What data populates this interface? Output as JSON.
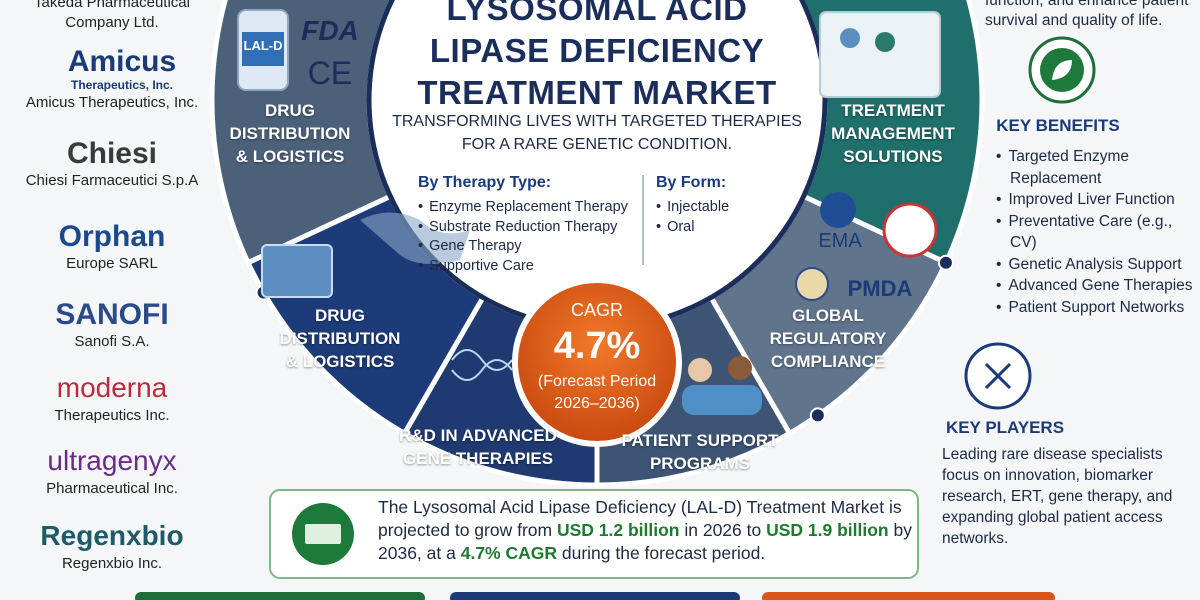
{
  "header": {
    "title": [
      "LYSOSOMAL ACID",
      "LIPASE DEFICIENCY",
      "TREATMENT MARKET"
    ],
    "subtitle": [
      "TRANSFORMING LIVES WITH TARGETED THERAPIES",
      "FOR A RARE GENETIC CONDITION."
    ]
  },
  "companies": [
    {
      "logo": null,
      "name": [
        "Takeda Pharmaceutical",
        "Company Ltd."
      ]
    },
    {
      "logo": [
        "Amicus",
        "Therapeutics, Inc."
      ],
      "name": [
        "Amicus Therapeutics, Inc."
      ]
    },
    {
      "logo": [
        "Chiesi"
      ],
      "name": [
        "Chiesi Farmaceutici S.p.A"
      ]
    },
    {
      "logo": [
        "Orphan"
      ],
      "name": [
        "Europe SARL"
      ]
    },
    {
      "logo": [
        "SANOFI"
      ],
      "name": [
        "Sanofi S.A."
      ]
    },
    {
      "logo": [
        "moderna"
      ],
      "name": [
        "Therapeutics Inc."
      ]
    },
    {
      "logo": [
        "ultragenyx"
      ],
      "name": [
        "Pharmaceutical Inc."
      ]
    },
    {
      "logo": [
        "Regenxbio"
      ],
      "name": [
        "Regenxbio Inc."
      ]
    }
  ],
  "segments": [
    [
      "DRUG",
      "DISTRIBUTION",
      "& LOGISTICS"
    ],
    [
      "TREATMENT",
      "MANAGEMENT",
      "SOLUTIONS"
    ],
    [
      "DRUG",
      "DISTRIBUTION",
      "& LOGISTICS"
    ],
    [
      "GLOBAL",
      "REGULATORY",
      "COMPLIANCE"
    ],
    [
      "R&D IN ADVANCED",
      "GENE THERAPIES"
    ],
    [
      "PATIENT SUPPORT",
      "PROGRAMS"
    ]
  ],
  "badges": {
    "vial": "LAL-D",
    "fda": "FDA",
    "ce": "CE",
    "ema": "EMA",
    "pmda": "PMDA"
  },
  "therapy_type": {
    "title": "By Therapy Type:",
    "items": [
      "Enzyme Replacement Therapy",
      "Substrate Reduction Therapy",
      "Gene Therapy",
      "Supportive Care"
    ]
  },
  "form": {
    "title": "By Form:",
    "items": [
      "Injectable",
      "Oral"
    ]
  },
  "cagr": {
    "label": "CAGR",
    "value": "4.7%",
    "period": [
      "(Forecast Period",
      "2026–2036)"
    ]
  },
  "benefits": {
    "intro": [
      "function, and enhance patient",
      "survival and quality of life."
    ],
    "title": "KEY BENEFITS",
    "items": [
      "Targeted Enzyme Replacement",
      "Improved Liver Function",
      "Preventative Care (e.g., CV)",
      "Genetic Analysis Support",
      "Advanced Gene Therapies",
      "Patient Support Networks"
    ]
  },
  "players": {
    "title": "KEY PLAYERS",
    "text": "Leading rare disease specialists focus on innovation, biomarker research, ERT, gene therapy, and expanding global patient access networks."
  },
  "summary": [
    {
      "text": "The Lysosomal Acid Lipase Deficiency (LAL-D) Treatment Market is projected to grow from ",
      "bold": false
    },
    {
      "text": "USD 1.2 billion",
      "bold": true
    },
    {
      "text": " in 2026 to ",
      "bold": false
    },
    {
      "text": "USD 1.9 billion",
      "bold": true
    },
    {
      "text": " by 2036, at a ",
      "bold": false
    },
    {
      "text": "4.7% CAGR",
      "bold": true
    },
    {
      "text": " during the forecast period.",
      "bold": false
    }
  ]
}
